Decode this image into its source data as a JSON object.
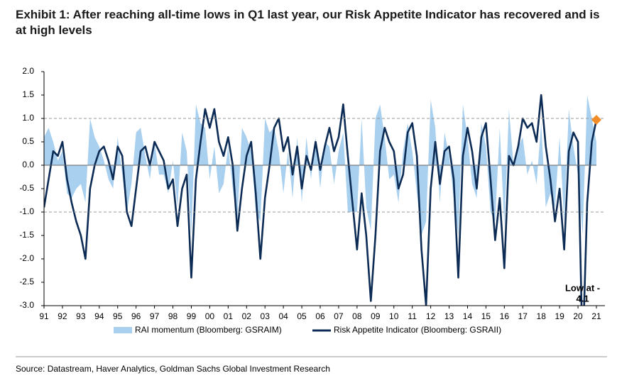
{
  "chart_data": {
    "type": "line",
    "title": "Exhibit 1: After reaching all-time lows in Q1 last year, our Risk Appetite Indicator has recovered and is at high levels",
    "source": "Source: Datastream, Haver Analytics, Goldman Sachs Global Investment Research",
    "xlim": [
      1991,
      2021
    ],
    "xticks": [
      {
        "value": 1991,
        "label": "91"
      },
      {
        "value": 1992,
        "label": "92"
      },
      {
        "value": 1993,
        "label": "93"
      },
      {
        "value": 1994,
        "label": "94"
      },
      {
        "value": 1995,
        "label": "95"
      },
      {
        "value": 1996,
        "label": "96"
      },
      {
        "value": 1997,
        "label": "97"
      },
      {
        "value": 1998,
        "label": "98"
      },
      {
        "value": 1999,
        "label": "99"
      },
      {
        "value": 2000,
        "label": "00"
      },
      {
        "value": 2001,
        "label": "01"
      },
      {
        "value": 2002,
        "label": "02"
      },
      {
        "value": 2003,
        "label": "03"
      },
      {
        "value": 2004,
        "label": "04"
      },
      {
        "value": 2005,
        "label": "05"
      },
      {
        "value": 2006,
        "label": "06"
      },
      {
        "value": 2007,
        "label": "07"
      },
      {
        "value": 2008,
        "label": "08"
      },
      {
        "value": 2009,
        "label": "09"
      },
      {
        "value": 2010,
        "label": "10"
      },
      {
        "value": 2011,
        "label": "11"
      },
      {
        "value": 2012,
        "label": "12"
      },
      {
        "value": 2013,
        "label": "13"
      },
      {
        "value": 2014,
        "label": "14"
      },
      {
        "value": 2015,
        "label": "15"
      },
      {
        "value": 2016,
        "label": "16"
      },
      {
        "value": 2017,
        "label": "17"
      },
      {
        "value": 2018,
        "label": "18"
      },
      {
        "value": 2019,
        "label": "19"
      },
      {
        "value": 2020,
        "label": "20"
      },
      {
        "value": 2021,
        "label": "21"
      }
    ],
    "ylim": [
      -3,
      2
    ],
    "yticks": [
      {
        "value": 2,
        "label": "2.0"
      },
      1.5,
      {
        "value": 1,
        "label": "1.0"
      },
      0.5,
      {
        "value": 0,
        "label": "0.0"
      },
      -0.5,
      {
        "value": -1,
        "label": "-1.0"
      },
      -1.5,
      {
        "value": -2,
        "label": "-2.0"
      },
      -2.5,
      {
        "value": -3,
        "label": "-3.0"
      }
    ],
    "reference_lines": [
      1,
      -1
    ],
    "x": [
      1991,
      1991.25,
      1991.5,
      1991.75,
      1992,
      1992.25,
      1992.5,
      1992.75,
      1993,
      1993.25,
      1993.5,
      1993.75,
      1994,
      1994.25,
      1994.5,
      1994.75,
      1995,
      1995.25,
      1995.5,
      1995.75,
      1996,
      1996.25,
      1996.5,
      1996.75,
      1997,
      1997.25,
      1997.5,
      1997.75,
      1998,
      1998.25,
      1998.5,
      1998.75,
      1999,
      1999.25,
      1999.5,
      1999.75,
      2000,
      2000.25,
      2000.5,
      2000.75,
      2001,
      2001.25,
      2001.5,
      2001.75,
      2002,
      2002.25,
      2002.5,
      2002.75,
      2003,
      2003.25,
      2003.5,
      2003.75,
      2004,
      2004.25,
      2004.5,
      2004.75,
      2005,
      2005.25,
      2005.5,
      2005.75,
      2006,
      2006.25,
      2006.5,
      2006.75,
      2007,
      2007.25,
      2007.5,
      2007.75,
      2008,
      2008.25,
      2008.5,
      2008.75,
      2009,
      2009.25,
      2009.5,
      2009.75,
      2010,
      2010.25,
      2010.5,
      2010.75,
      2011,
      2011.25,
      2011.5,
      2011.75,
      2012,
      2012.25,
      2012.5,
      2012.75,
      2013,
      2013.25,
      2013.5,
      2013.75,
      2014,
      2014.25,
      2014.5,
      2014.75,
      2015,
      2015.25,
      2015.5,
      2015.75,
      2016,
      2016.25,
      2016.5,
      2016.75,
      2017,
      2017.25,
      2017.5,
      2017.75,
      2018,
      2018.25,
      2018.5,
      2018.75,
      2019,
      2019.25,
      2019.5,
      2019.75,
      2020,
      2020.25,
      2020.5,
      2020.75,
      2021
    ],
    "series": [
      {
        "name": "RAI momentum (Bloomberg: GSRAIM)",
        "color": "#a9d0ef",
        "style": "area",
        "values": [
          0.6,
          0.8,
          0.5,
          0.1,
          0.3,
          -0.6,
          -0.7,
          -0.5,
          -0.4,
          -0.8,
          1.0,
          0.6,
          0.4,
          0.1,
          -0.3,
          -0.5,
          0.6,
          -0.2,
          -1.0,
          -0.4,
          0.7,
          0.8,
          0.2,
          -0.3,
          0.5,
          -0.2,
          -0.2,
          -0.6,
          0.1,
          -0.9,
          0.7,
          0.3,
          -1.5,
          1.3,
          0.9,
          0.8,
          -0.3,
          0.4,
          -0.6,
          -0.4,
          0.4,
          -0.5,
          -1.2,
          0.8,
          0.6,
          0.3,
          -1.0,
          -1.2,
          1.0,
          0.7,
          0.8,
          0.3,
          -0.6,
          0.3,
          -0.7,
          0.6,
          -0.8,
          0.6,
          -0.3,
          0.6,
          -0.5,
          0.5,
          0.4,
          -0.4,
          0.3,
          0.7,
          -1.0,
          -1.0,
          -1.0,
          1.0,
          -0.9,
          -1.4,
          1.0,
          1.3,
          0.6,
          -0.3,
          -0.2,
          -0.8,
          0.3,
          0.9,
          0.3,
          -0.6,
          -1.5,
          -1.2,
          1.4,
          0.8,
          -0.8,
          0.7,
          0.2,
          -0.7,
          -1.5,
          1.3,
          0.6,
          -0.4,
          -0.7,
          0.9,
          0.4,
          -1.0,
          -1.2,
          0.8,
          -1.3,
          1.2,
          0.0,
          0.4,
          0.6,
          -0.2,
          0.1,
          -0.4,
          0.9,
          -0.9,
          -0.6,
          -0.9,
          0.6,
          -1.2,
          1.2,
          0.4,
          -0.2,
          -1.5,
          1.5,
          1.0,
          0.5
        ]
      },
      {
        "name": "Risk Appetite Indicator (Bloomberg: GSRAII)",
        "color": "#0c2b55",
        "style": "line",
        "values": [
          -0.9,
          -0.3,
          0.3,
          0.2,
          0.5,
          -0.3,
          -0.8,
          -1.2,
          -1.5,
          -2.0,
          -0.5,
          0.0,
          0.3,
          0.4,
          0.1,
          -0.3,
          0.4,
          0.2,
          -1.0,
          -1.3,
          -0.5,
          0.3,
          0.4,
          0.0,
          0.5,
          0.3,
          0.1,
          -0.5,
          -0.3,
          -1.3,
          -0.5,
          -0.2,
          -2.4,
          -0.3,
          0.5,
          1.2,
          0.8,
          1.2,
          0.5,
          0.2,
          0.6,
          0.0,
          -1.4,
          -0.5,
          0.2,
          0.5,
          -0.6,
          -2.0,
          -0.7,
          0.0,
          0.8,
          1.0,
          0.3,
          0.6,
          -0.2,
          0.4,
          -0.5,
          0.2,
          -0.1,
          0.5,
          -0.1,
          0.4,
          0.8,
          0.3,
          0.6,
          1.3,
          0.2,
          -0.8,
          -1.8,
          -0.6,
          -1.5,
          -2.9,
          -1.5,
          0.3,
          0.8,
          0.5,
          0.3,
          -0.5,
          -0.2,
          0.7,
          0.9,
          0.2,
          -1.8,
          -3.0,
          -0.5,
          0.5,
          -0.4,
          0.3,
          0.4,
          -0.3,
          -2.4,
          0.2,
          0.8,
          0.3,
          -0.5,
          0.6,
          0.9,
          -0.3,
          -1.6,
          -0.7,
          -2.2,
          0.2,
          0.0,
          0.4,
          1.0,
          0.8,
          0.9,
          0.5,
          1.5,
          0.4,
          -0.3,
          -1.2,
          -0.5,
          -1.8,
          0.3,
          0.7,
          0.5,
          -4.1,
          -0.8,
          0.5,
          0.97
        ]
      }
    ],
    "highlight": {
      "x": 2021,
      "value": 0.97,
      "color": "#f28c28"
    },
    "annotation": {
      "x": 2020.25,
      "value": -4.1,
      "lines": [
        "Low at -",
        "4.1"
      ]
    }
  }
}
